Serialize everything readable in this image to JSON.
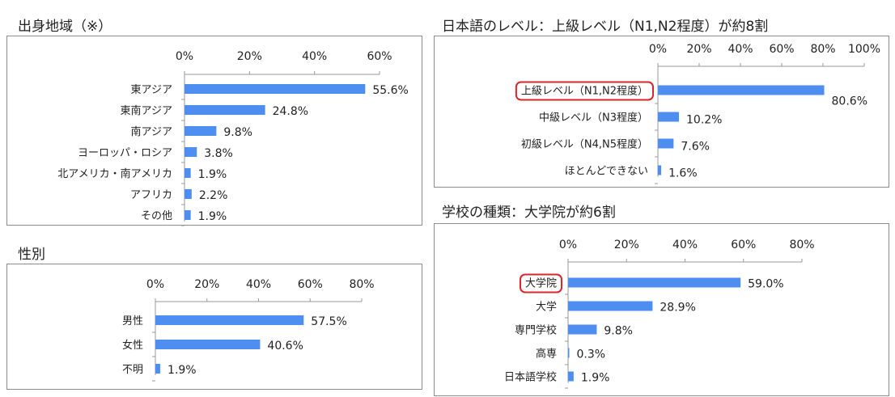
{
  "chart_data": [
    {
      "type": "bar",
      "orientation": "horizontal",
      "title": "出身地域（※）",
      "categories": [
        "東アジア",
        "東南アジア",
        "南アジア",
        "ヨーロッパ・ロシア",
        "北アメリカ・南アメリカ",
        "アフリカ",
        "その他"
      ],
      "values": [
        55.6,
        24.8,
        9.8,
        3.8,
        1.9,
        2.2,
        1.9
      ],
      "value_labels": [
        "55.6%",
        "24.8%",
        "9.8%",
        "3.8%",
        "1.9%",
        "2.2%",
        "1.9%"
      ],
      "xlim": [
        0,
        60
      ],
      "ticks": [
        "0%",
        "20%",
        "40%",
        "60%"
      ],
      "tick_values": [
        0,
        20,
        40,
        60
      ],
      "highlight": [],
      "bar_color": "#4e8ef0",
      "grid": false
    },
    {
      "type": "bar",
      "orientation": "horizontal",
      "title": "性別",
      "categories": [
        "男性",
        "女性",
        "不明"
      ],
      "values": [
        57.5,
        40.6,
        1.9
      ],
      "value_labels": [
        "57.5%",
        "40.6%",
        "1.9%"
      ],
      "xlim": [
        0,
        80
      ],
      "ticks": [
        "0%",
        "20%",
        "40%",
        "60%",
        "80%"
      ],
      "tick_values": [
        0,
        20,
        40,
        60,
        80
      ],
      "highlight": [],
      "bar_color": "#4e8ef0",
      "grid": false
    },
    {
      "type": "bar",
      "orientation": "horizontal",
      "title": "日本語のレベル：上級レベル（N1,N2程度）が約8割",
      "categories": [
        "上級レベル（N1,N2程度）",
        "中級レベル（N3程度）",
        "初級レベル（N4,N5程度）",
        "ほとんどできない"
      ],
      "values": [
        80.6,
        10.2,
        7.6,
        1.6
      ],
      "value_labels": [
        "80.6%",
        "10.2%",
        "7.6%",
        "1.6%"
      ],
      "xlim": [
        0,
        100
      ],
      "ticks": [
        "0%",
        "20%",
        "40%",
        "60%",
        "80%",
        "100%"
      ],
      "tick_values": [
        0,
        20,
        40,
        60,
        80,
        100
      ],
      "highlight": [
        0
      ],
      "highlight_color": "#d9252b",
      "bar_color": "#4e8ef0",
      "grid": false
    },
    {
      "type": "bar",
      "orientation": "horizontal",
      "title": "学校の種類：大学院が約6割",
      "categories": [
        "大学院",
        "大学",
        "専門学校",
        "高専",
        "日本語学校"
      ],
      "values": [
        59.0,
        28.9,
        9.8,
        0.3,
        1.9
      ],
      "value_labels": [
        "59.0%",
        "28.9%",
        "9.8%",
        "0.3%",
        "1.9%"
      ],
      "xlim": [
        0,
        80
      ],
      "ticks": [
        "0%",
        "20%",
        "40%",
        "60%",
        "80%"
      ],
      "tick_values": [
        0,
        20,
        40,
        60,
        80
      ],
      "highlight": [
        0
      ],
      "highlight_color": "#d9252b",
      "bar_color": "#4e8ef0",
      "grid": false
    }
  ]
}
